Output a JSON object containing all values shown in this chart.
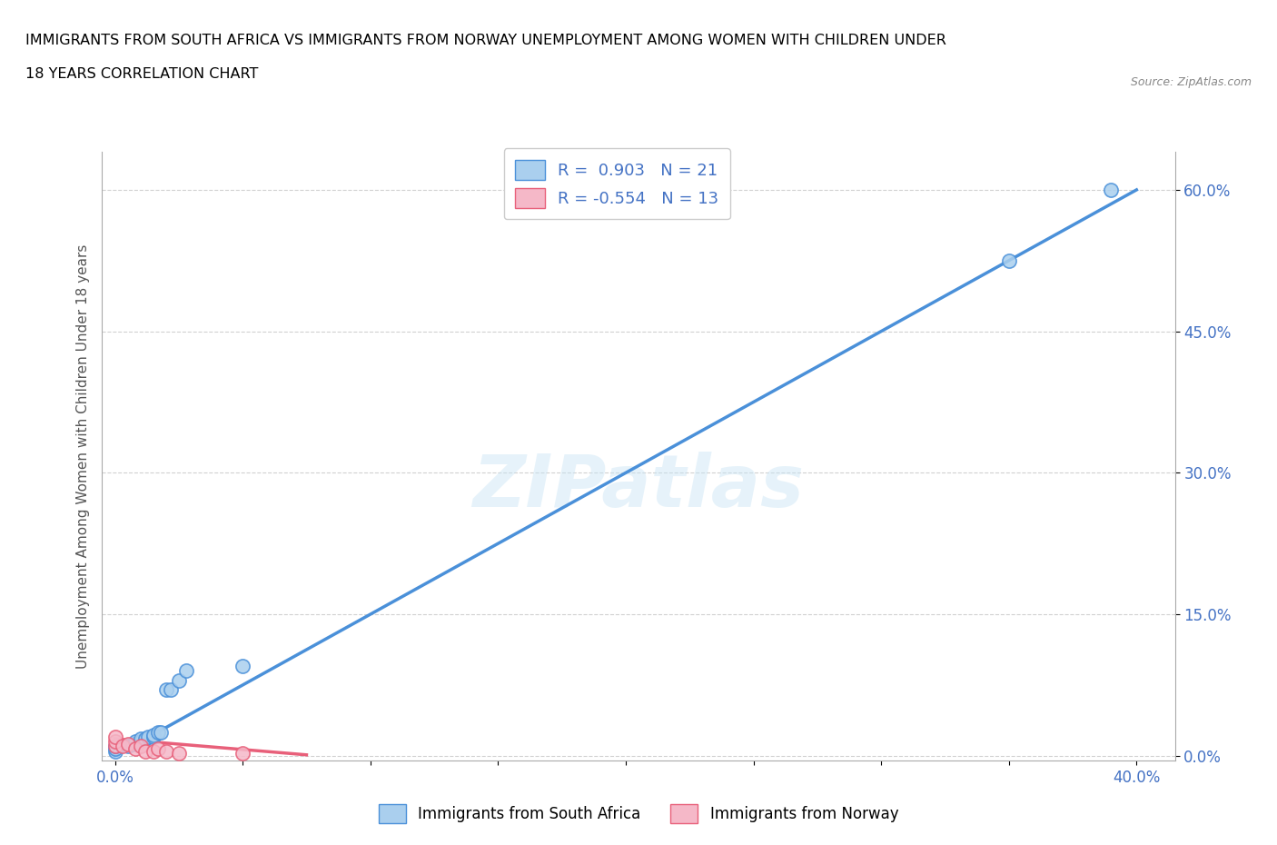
{
  "title_line1": "IMMIGRANTS FROM SOUTH AFRICA VS IMMIGRANTS FROM NORWAY UNEMPLOYMENT AMONG WOMEN WITH CHILDREN UNDER",
  "title_line2": "18 YEARS CORRELATION CHART",
  "source": "Source: ZipAtlas.com",
  "ylabel": "Unemployment Among Women with Children Under 18 years",
  "xlabel_ticks": [
    "0.0%",
    "",
    "",
    "",
    "",
    "",
    "",
    "",
    "40.0%"
  ],
  "ylabel_ticks": [
    "0.0%",
    "15.0%",
    "30.0%",
    "45.0%",
    "60.0%"
  ],
  "xlim": [
    -0.005,
    0.415
  ],
  "ylim": [
    -0.005,
    0.64
  ],
  "watermark": "ZIPatlas",
  "south_africa_color": "#aacfee",
  "norway_color": "#f5b8c8",
  "line_sa_color": "#4a90d9",
  "line_no_color": "#e8607a",
  "sa_x": [
    0.0,
    0.0,
    0.0,
    0.005,
    0.007,
    0.008,
    0.01,
    0.01,
    0.012,
    0.013,
    0.015,
    0.015,
    0.017,
    0.018,
    0.02,
    0.022,
    0.025,
    0.028,
    0.05,
    0.35,
    0.39
  ],
  "sa_y": [
    0.005,
    0.008,
    0.01,
    0.01,
    0.012,
    0.015,
    0.015,
    0.018,
    0.018,
    0.02,
    0.02,
    0.022,
    0.025,
    0.025,
    0.07,
    0.07,
    0.08,
    0.09,
    0.095,
    0.525,
    0.6
  ],
  "no_x": [
    0.0,
    0.0,
    0.0,
    0.003,
    0.005,
    0.008,
    0.01,
    0.012,
    0.015,
    0.017,
    0.02,
    0.025,
    0.05
  ],
  "no_y": [
    0.01,
    0.015,
    0.02,
    0.01,
    0.012,
    0.008,
    0.01,
    0.005,
    0.005,
    0.008,
    0.005,
    0.003,
    0.003
  ],
  "sa_line_x": [
    0.0,
    0.4
  ],
  "sa_line_y": [
    0.0,
    0.6
  ],
  "no_line_x": [
    0.0,
    0.075
  ],
  "no_line_y": [
    0.018,
    0.001
  ],
  "tick_color": "#4472c4",
  "grid_color": "#cccccc",
  "legend1_label": "R =  0.903   N = 21",
  "legend2_label": "R = -0.554   N = 13",
  "bottom_legend1": "Immigrants from South Africa",
  "bottom_legend2": "Immigrants from Norway"
}
